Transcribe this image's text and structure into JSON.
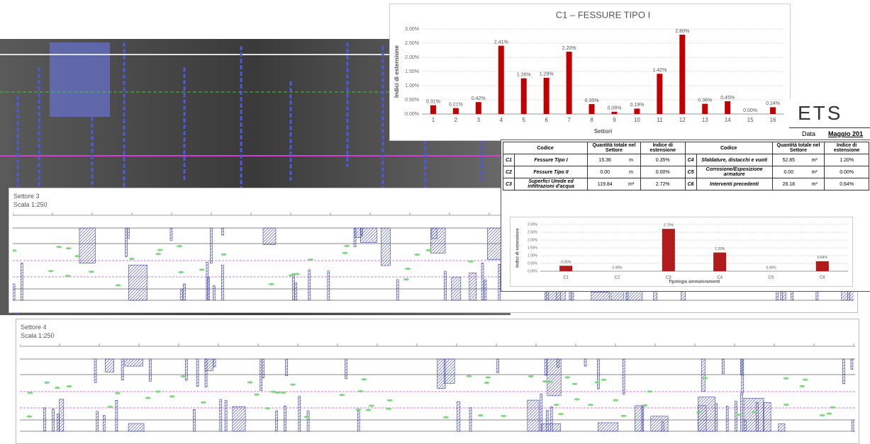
{
  "chart_data": [
    {
      "type": "bar",
      "title": "C1 – FESSURE TIPO I",
      "x_label": "Settori",
      "y_label": "Indici di estensione",
      "categories": [
        "1",
        "2",
        "3",
        "4",
        "5",
        "6",
        "7",
        "8",
        "9",
        "10",
        "11",
        "12",
        "13",
        "14",
        "15",
        "16"
      ],
      "values": [
        0.31,
        0.21,
        0.42,
        2.41,
        1.26,
        1.28,
        2.2,
        0.35,
        0.08,
        0.19,
        1.42,
        2.8,
        0.36,
        0.45,
        0.0,
        0.24
      ],
      "value_labels": [
        "0.31%",
        "0.21%",
        "0.42%",
        "2.41%",
        "1.26%",
        "1.28%",
        "2.20%",
        "0.35%",
        "0.08%",
        "0.19%",
        "1.42%",
        "2.80%",
        "0.36%",
        "0.45%",
        "0.00%",
        "0.24%"
      ],
      "color": "#c00000",
      "ylim": [
        0,
        3
      ],
      "grid": true,
      "yticks": [
        {
          "value": 0,
          "label": "0.00%"
        },
        {
          "value": 0.5,
          "label": "0.50%"
        },
        {
          "value": 1,
          "label": "1.00%"
        },
        {
          "value": 1.5,
          "label": "1.50%"
        },
        {
          "value": 2,
          "label": "2.00%"
        },
        {
          "value": 2.5,
          "label": "2.50%"
        },
        {
          "value": 3,
          "label": "3.00%"
        }
      ]
    },
    {
      "type": "bar",
      "x_label": "Tipologia ammaloramenti",
      "y_label": "Indici di estensione",
      "categories": [
        "C1",
        "C2",
        "C3",
        "C4",
        "C5",
        "C6"
      ],
      "values": [
        0.35,
        0.0,
        2.72,
        1.2,
        0.0,
        0.64
      ],
      "value_labels": [
        "0.35%",
        "0.00%",
        "2.72%",
        "1.20%",
        "0.00%",
        "0.64%"
      ],
      "color": "#b01c1c",
      "ylim": [
        0,
        3
      ],
      "grid": true,
      "yticks": [
        {
          "value": 0,
          "label": "0.00%"
        },
        {
          "value": 0.5,
          "label": "0.50%"
        },
        {
          "value": 1,
          "label": "1.00%"
        },
        {
          "value": 1.5,
          "label": "1.50%"
        },
        {
          "value": 2,
          "label": "2.00%"
        },
        {
          "value": 2.5,
          "label": "2.50%"
        },
        {
          "value": 3,
          "label": "3.00%"
        }
      ]
    }
  ],
  "header": {
    "logo": "ETS",
    "date_label": "Data",
    "date": "Maggio 201"
  },
  "table": {
    "columns": [
      "Codice",
      "Quantità totale nel Settore",
      "Indice di estensione"
    ],
    "rows": [
      [
        "C1",
        "Fessure Tipo I",
        "15.36",
        "m",
        "0.35%"
      ],
      [
        "C2",
        "Fessure Tipo II",
        "0.00",
        "m",
        "0.00%"
      ],
      [
        "C3",
        "Superfici Umide ed infiltrazioni d'acqua",
        "119.84",
        "m²",
        "2.72%"
      ],
      [
        "C4",
        "Sfaldature, distacchi e vuoti",
        "52.85",
        "m²",
        "1.20%"
      ],
      [
        "C5",
        "Corrosione/Esposizione armature",
        "0.00",
        "m²",
        "0.00%"
      ],
      [
        "C6",
        "Interventi precedenti",
        "28.18",
        "m²",
        "0.64%"
      ]
    ]
  },
  "panels": [
    {
      "title": "Settore 3",
      "scale": "Scala 1:250"
    },
    {
      "title": "Settore 4",
      "scale": "Scala 1:250"
    }
  ]
}
